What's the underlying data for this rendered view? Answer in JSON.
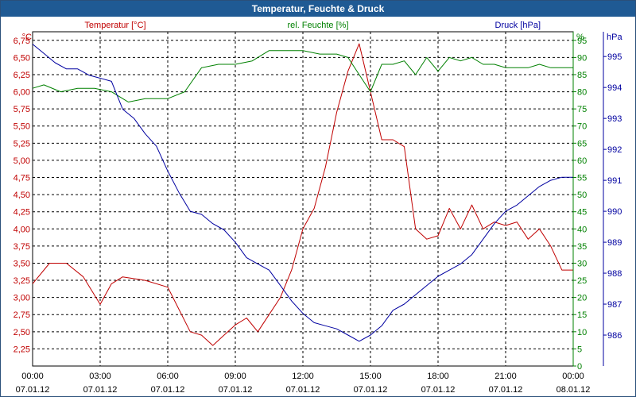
{
  "window": {
    "title": "Temperatur, Feuchte & Druck"
  },
  "chart_data": {
    "type": "line",
    "title": "Temperatur, Feuchte & Druck",
    "grid": true,
    "colors": {
      "temperature": "#c00000",
      "humidity": "#008000",
      "pressure": "#0000a0"
    },
    "x_ticks": [
      {
        "time": "00:00",
        "date": "07.01.12"
      },
      {
        "time": "03:00",
        "date": "07.01.12"
      },
      {
        "time": "06:00",
        "date": "07.01.12"
      },
      {
        "time": "09:00",
        "date": "07.01.12"
      },
      {
        "time": "12:00",
        "date": "07.01.12"
      },
      {
        "time": "15:00",
        "date": "07.01.12"
      },
      {
        "time": "18:00",
        "date": "07.01.12"
      },
      {
        "time": "21:00",
        "date": "07.01.12"
      },
      {
        "time": "00:00",
        "date": "08.01.12"
      }
    ],
    "axes": {
      "temperature": {
        "label": "Temperatur [°C]",
        "unit": "°C",
        "range": [
          2.0,
          6.875
        ],
        "ticks": [
          "2,25",
          "2,50",
          "2,75",
          "3,00",
          "3,25",
          "3,50",
          "3,75",
          "4,00",
          "4,25",
          "4,50",
          "4,75",
          "5,00",
          "5,25",
          "5,50",
          "5,75",
          "6,00",
          "6,25",
          "6,50",
          "6,75"
        ]
      },
      "humidity": {
        "label": "rel. Feuchte [%]",
        "unit": "%",
        "range": [
          0,
          97.5
        ],
        "ticks": [
          "0",
          "5",
          "10",
          "15",
          "20",
          "25",
          "30",
          "35",
          "40",
          "45",
          "50",
          "55",
          "60",
          "65",
          "70",
          "75",
          "80",
          "85",
          "90",
          "95"
        ]
      },
      "pressure": {
        "label": "Druck [hPa]",
        "unit": "hPa",
        "range": [
          985.0,
          995.8
        ],
        "ticks": [
          "986",
          "987",
          "988",
          "989",
          "990",
          "991",
          "992",
          "993",
          "994",
          "995"
        ]
      }
    },
    "series": [
      {
        "name": "Temperatur [°C]",
        "axis": "temperature",
        "x": [
          "00:00",
          "00:45",
          "01:30",
          "02:15",
          "03:00",
          "03:30",
          "04:00",
          "05:00",
          "06:00",
          "07:00",
          "07:30",
          "08:00",
          "08:30",
          "09:00",
          "09:30",
          "10:00",
          "10:30",
          "11:00",
          "11:30",
          "12:00",
          "12:30",
          "13:00",
          "13:30",
          "14:00",
          "14:30",
          "15:00",
          "15:30",
          "16:00",
          "16:30",
          "17:00",
          "17:30",
          "18:00",
          "18:30",
          "19:00",
          "19:30",
          "20:00",
          "20:30",
          "21:00",
          "21:30",
          "22:00",
          "22:30",
          "23:00",
          "23:30",
          "24:00"
        ],
        "y": [
          3.2,
          3.5,
          3.5,
          3.3,
          2.9,
          3.2,
          3.3,
          3.25,
          3.15,
          2.5,
          2.45,
          2.3,
          2.45,
          2.6,
          2.7,
          2.5,
          2.75,
          3.0,
          3.4,
          4.0,
          4.3,
          4.9,
          5.7,
          6.3,
          6.7,
          6.0,
          5.3,
          5.3,
          5.2,
          4.0,
          3.85,
          3.9,
          4.3,
          4.0,
          4.35,
          4.0,
          4.1,
          4.05,
          4.1,
          3.85,
          4.0,
          3.75,
          3.4,
          3.4
        ]
      },
      {
        "name": "rel. Feuchte [%]",
        "axis": "humidity",
        "x": [
          "00:00",
          "00:30",
          "01:15",
          "02:00",
          "02:45",
          "03:30",
          "04:15",
          "05:00",
          "06:00",
          "06:45",
          "07:30",
          "08:15",
          "09:00",
          "09:45",
          "10:30",
          "11:15",
          "12:00",
          "12:45",
          "13:30",
          "14:00",
          "14:30",
          "15:00",
          "15:30",
          "16:00",
          "16:30",
          "17:00",
          "17:30",
          "18:00",
          "18:30",
          "19:00",
          "19:30",
          "20:00",
          "20:30",
          "21:00",
          "21:30",
          "22:00",
          "22:30",
          "23:00",
          "23:30",
          "24:00"
        ],
        "y": [
          81,
          82,
          80,
          81,
          81,
          80,
          77,
          78,
          78,
          80,
          87,
          88,
          88,
          89,
          92,
          92,
          92,
          91,
          91,
          90,
          85,
          80,
          88,
          88,
          89,
          85,
          90,
          86,
          90,
          89,
          90,
          88,
          88,
          87,
          87,
          87,
          88,
          87,
          87,
          87
        ]
      },
      {
        "name": "Druck [hPa]",
        "axis": "pressure",
        "x": [
          "00:00",
          "00:30",
          "01:00",
          "01:30",
          "02:00",
          "02:30",
          "03:00",
          "03:30",
          "04:00",
          "04:30",
          "05:00",
          "05:30",
          "06:00",
          "06:30",
          "07:00",
          "07:30",
          "08:00",
          "08:30",
          "09:00",
          "09:30",
          "10:00",
          "10:30",
          "11:00",
          "11:30",
          "12:00",
          "12:30",
          "13:00",
          "13:30",
          "14:00",
          "14:30",
          "15:00",
          "15:30",
          "16:00",
          "16:30",
          "17:00",
          "17:30",
          "18:00",
          "18:30",
          "19:00",
          "19:30",
          "20:00",
          "20:30",
          "21:00",
          "21:30",
          "22:00",
          "22:30",
          "23:00",
          "23:30",
          "24:00"
        ],
        "y": [
          995.4,
          995.1,
          994.8,
          994.6,
          994.6,
          994.4,
          994.3,
          994.2,
          993.3,
          993.0,
          992.5,
          992.1,
          991.3,
          990.6,
          990.0,
          989.9,
          989.6,
          989.4,
          989.0,
          988.5,
          988.3,
          988.1,
          987.6,
          987.1,
          986.7,
          986.4,
          986.3,
          986.2,
          986.0,
          985.8,
          986.0,
          986.3,
          986.8,
          987.0,
          987.3,
          987.6,
          987.9,
          988.1,
          988.3,
          988.6,
          989.1,
          989.6,
          990.0,
          990.2,
          990.5,
          990.8,
          991.0,
          991.1,
          991.1
        ]
      }
    ]
  }
}
